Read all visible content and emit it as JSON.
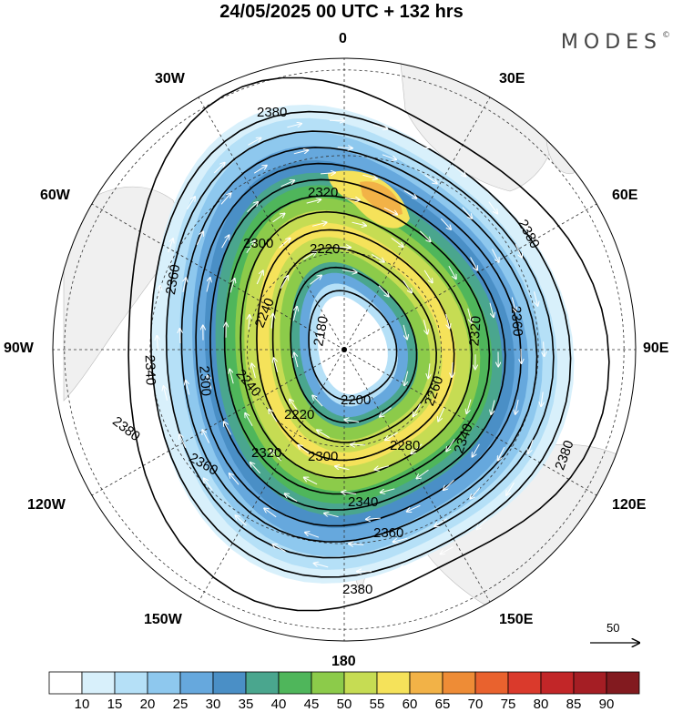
{
  "title": "24/05/2025  00 UTC  + 132 hrs",
  "brand": "MODES",
  "brand_mark": "©",
  "longitude_labels": {
    "lon_0": "0",
    "lon_30e": "30E",
    "lon_60e": "60E",
    "lon_90e": "90E",
    "lon_120e": "120E",
    "lon_150e": "150E",
    "lon_180": "180",
    "lon_150w": "150W",
    "lon_120w": "120W",
    "lon_90w": "90W",
    "lon_60w": "60W",
    "lon_30w": "30W"
  },
  "contour_labels": {
    "c2380": "2380",
    "c2360": "2360",
    "c2340": "2340",
    "c2320": "2320",
    "c2300": "2300",
    "c2280": "2280",
    "c2260": "2260",
    "c2240": "2240",
    "c2220": "2220",
    "c2200": "2200",
    "c2180": "2180"
  },
  "vector_reference": "50",
  "colorbar": {
    "ticks": [
      "10",
      "15",
      "20",
      "25",
      "30",
      "35",
      "40",
      "45",
      "50",
      "55",
      "60",
      "65",
      "70",
      "75",
      "80",
      "85",
      "90"
    ],
    "colors": [
      "#ffffff",
      "#d8f0fb",
      "#b5e0f7",
      "#8ec8ee",
      "#66a8dd",
      "#4a8fc6",
      "#4aa68e",
      "#4fb65b",
      "#8ccb4a",
      "#c6dc53",
      "#f5e25a",
      "#f2b247",
      "#ee8c36",
      "#e9622e",
      "#da3a2c",
      "#c22628",
      "#a51e24",
      "#821a1f"
    ]
  }
}
